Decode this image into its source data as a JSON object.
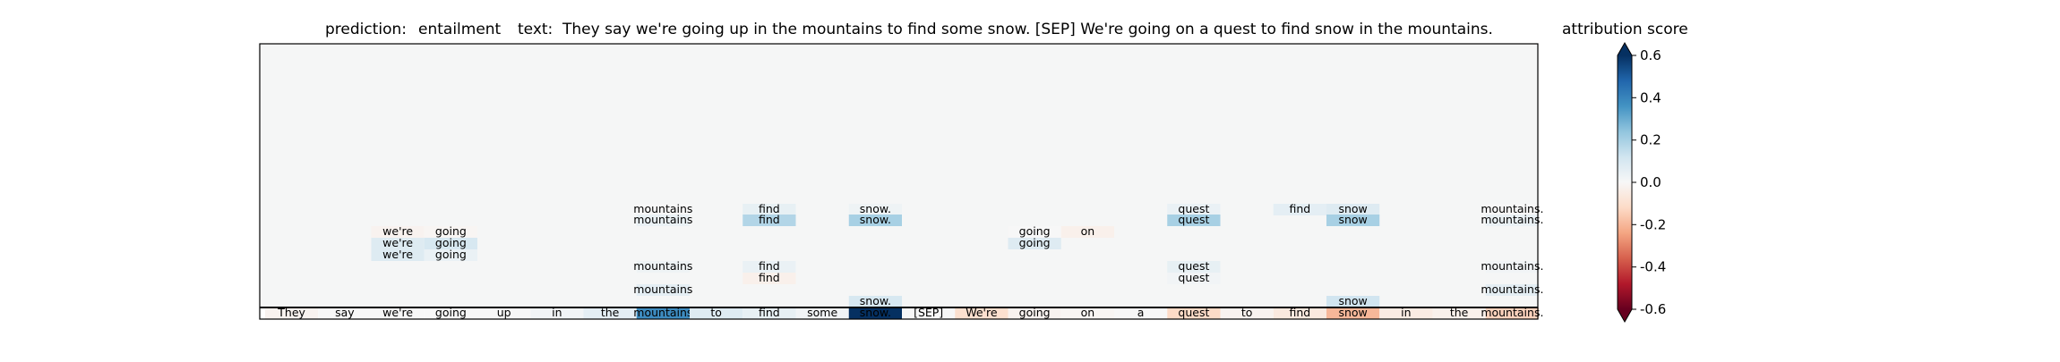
{
  "header": {
    "prediction_label": "prediction:",
    "prediction_value": "entailment",
    "text_label": "text:",
    "text_value": "They say we're going up in the mountains to find some snow. [SEP] We're going on a quest to find snow in the mountains.",
    "colorbar_title": "attribution score"
  },
  "chart_data": {
    "type": "heatmap",
    "tokens": [
      "They",
      "say",
      "we're",
      "going",
      "up",
      "in",
      "the",
      "mountains",
      "to",
      "find",
      "some",
      "snow.",
      "[SEP]",
      "We're",
      "going",
      "on",
      "a",
      "quest",
      "to",
      "find",
      "snow",
      "in",
      "the",
      "mountains."
    ],
    "bottom_row": [
      -0.02,
      0.0,
      0.0,
      0.0,
      0.0,
      0.02,
      0.06,
      0.38,
      0.08,
      0.05,
      0.02,
      0.68,
      0.0,
      -0.1,
      -0.02,
      -0.01,
      0.0,
      -0.12,
      -0.02,
      -0.06,
      -0.2,
      -0.05,
      -0.03,
      -0.14
    ],
    "layers": [
      [
        {
          "t": 7,
          "v": 0.0
        },
        {
          "t": 9,
          "v": 0.05
        },
        {
          "t": 11,
          "v": 0.03
        },
        {
          "t": 17,
          "v": 0.04
        },
        {
          "t": 19,
          "v": 0.06
        },
        {
          "t": 20,
          "v": 0.08
        },
        {
          "t": 23,
          "v": 0.0
        }
      ],
      [
        {
          "t": 7,
          "v": 0.04
        },
        {
          "t": 9,
          "v": 0.18
        },
        {
          "t": 11,
          "v": 0.2
        },
        {
          "t": 17,
          "v": 0.2
        },
        {
          "t": 20,
          "v": 0.2
        },
        {
          "t": 23,
          "v": 0.04
        }
      ],
      [
        {
          "t": 2,
          "v": -0.02
        },
        {
          "t": 3,
          "v": -0.01
        },
        {
          "t": 14,
          "v": 0.0
        },
        {
          "t": 15,
          "v": -0.03
        }
      ],
      [
        {
          "t": 2,
          "v": 0.08
        },
        {
          "t": 3,
          "v": 0.1
        },
        {
          "t": 14,
          "v": 0.08
        }
      ],
      [
        {
          "t": 2,
          "v": 0.08
        },
        {
          "t": 3,
          "v": 0.04
        }
      ],
      [
        {
          "t": 7,
          "v": 0.03
        },
        {
          "t": 9,
          "v": 0.04
        },
        {
          "t": 17,
          "v": 0.05
        },
        {
          "t": 23,
          "v": 0.02
        }
      ],
      [
        {
          "t": 9,
          "v": -0.03
        },
        {
          "t": 17,
          "v": 0.02
        }
      ],
      [
        {
          "t": 7,
          "v": 0.06
        },
        {
          "t": 23,
          "v": 0.06
        }
      ],
      [
        {
          "t": 11,
          "v": 0.1
        },
        {
          "t": 20,
          "v": 0.12
        }
      ]
    ],
    "vmin": -0.6,
    "vmax": 0.6,
    "colorbar_ticks": [
      0.6,
      0.4,
      0.2,
      0.0,
      -0.2,
      -0.4,
      -0.6
    ],
    "colormap": "RdBu"
  }
}
